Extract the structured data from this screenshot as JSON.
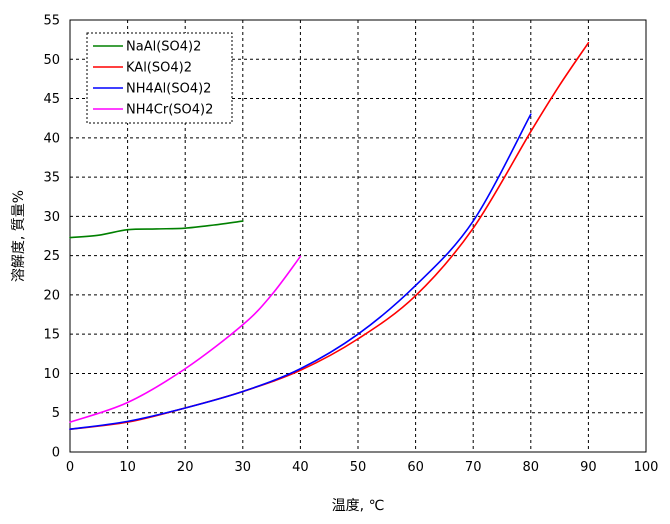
{
  "chart_data": {
    "type": "line",
    "title": "",
    "xlabel": "温度, ℃",
    "ylabel": "溶解度, 質量%",
    "xlim": [
      0,
      100
    ],
    "ylim": [
      0,
      55
    ],
    "xticks": [
      0,
      10,
      20,
      30,
      40,
      50,
      60,
      70,
      80,
      90,
      100
    ],
    "yticks": [
      0,
      5,
      10,
      15,
      20,
      25,
      30,
      35,
      40,
      45,
      50,
      55
    ],
    "grid": true,
    "legend": "top-left",
    "series": [
      {
        "name": "NaAl(SO4)2",
        "color": "#008000",
        "x": [
          0,
          5,
          10,
          15,
          20,
          25,
          30
        ],
        "y": [
          27.3,
          27.6,
          28.3,
          28.4,
          28.5,
          28.9,
          29.4
        ]
      },
      {
        "name": "KAl(SO4)2",
        "color": "#ff0000",
        "x": [
          0,
          10,
          20,
          30,
          40,
          50,
          60,
          70,
          80,
          85,
          90
        ],
        "y": [
          2.9,
          3.8,
          5.6,
          7.7,
          10.4,
          14.4,
          19.9,
          28.5,
          40.8,
          46.7,
          52.1
        ]
      },
      {
        "name": "NH4Al(SO4)2",
        "color": "#0000ff",
        "x": [
          0,
          10,
          20,
          30,
          40,
          50,
          60,
          70,
          80
        ],
        "y": [
          2.9,
          3.9,
          5.6,
          7.7,
          10.6,
          15.0,
          21.2,
          29.4,
          43.0
        ]
      },
      {
        "name": "NH4Cr(SO4)2",
        "color": "#ff00ff",
        "x": [
          0,
          10,
          20,
          30,
          35,
          40
        ],
        "y": [
          3.8,
          6.3,
          10.6,
          16.2,
          20.0,
          24.9
        ]
      }
    ]
  }
}
